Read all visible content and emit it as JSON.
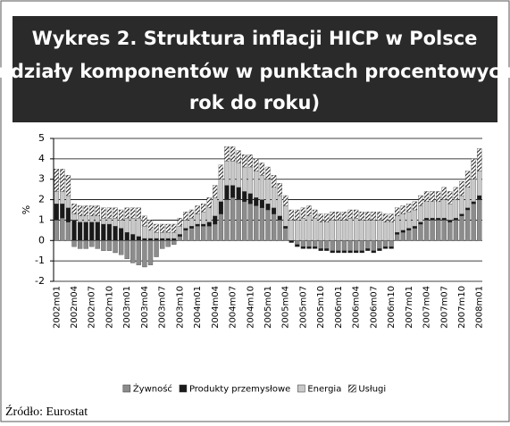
{
  "chart_data": {
    "type": "stacked_bar",
    "title": [
      "Wykres 2. Struktura inflacji HICP w Polsce",
      "(udziały komponentów w punktach procentowych,",
      "rok do roku)"
    ],
    "y_label": "%",
    "source": "Źródło: Eurostat",
    "categories": [
      "2002m01",
      null,
      null,
      "2002m04",
      null,
      null,
      "2002m07",
      null,
      null,
      "2002m10",
      null,
      null,
      "2003m01",
      null,
      null,
      "2003m04",
      null,
      null,
      "2003m07",
      null,
      null,
      "2003m10",
      null,
      null,
      "2004m01",
      null,
      null,
      "2004m04",
      null,
      null,
      "2004m07",
      null,
      null,
      "2004m10",
      null,
      null,
      "2005m01",
      null,
      null,
      "2005m04",
      null,
      null,
      "2005m07",
      null,
      null,
      "2005m10",
      null,
      null,
      "2006m01",
      null,
      null,
      "2006m04",
      null,
      null,
      "2006m07",
      null,
      null,
      "2006m10",
      null,
      null,
      "2007m01",
      null,
      null,
      "2007m04",
      null,
      null,
      "2007m07",
      null,
      null,
      "2007m10",
      null,
      null,
      "2008m01"
    ],
    "series": [
      {
        "name": "Żywność",
        "color": "#8c8c8c",
        "values": [
          1.0,
          1.1,
          0.9,
          -0.3,
          -0.4,
          -0.4,
          -0.3,
          -0.4,
          -0.5,
          -0.5,
          -0.6,
          -0.7,
          -0.9,
          -1.1,
          -1.2,
          -1.3,
          -1.2,
          -0.8,
          -0.4,
          -0.3,
          -0.2,
          0.2,
          0.5,
          0.6,
          0.7,
          0.7,
          0.7,
          0.8,
          1.3,
          2.0,
          2.1,
          2.0,
          1.9,
          1.8,
          1.7,
          1.6,
          1.5,
          1.3,
          1.0,
          0.6,
          0.0,
          -0.2,
          -0.3,
          -0.3,
          -0.3,
          -0.4,
          -0.4,
          -0.5,
          -0.5,
          -0.5,
          -0.5,
          -0.5,
          -0.5,
          -0.4,
          -0.5,
          -0.4,
          -0.3,
          -0.3,
          0.3,
          0.4,
          0.5,
          0.6,
          0.8,
          1.0,
          1.0,
          1.0,
          1.0,
          0.9,
          1.0,
          1.2,
          1.5,
          1.8,
          2.0
        ]
      },
      {
        "name": "Produkty przemysłowe",
        "color": "#1a1a1a",
        "values": [
          0.8,
          0.7,
          0.7,
          1.0,
          0.9,
          0.9,
          0.9,
          0.9,
          0.8,
          0.8,
          0.7,
          0.6,
          0.4,
          0.3,
          0.2,
          0.1,
          0.1,
          0.1,
          0.1,
          0.1,
          0.1,
          0.1,
          0.1,
          0.1,
          0.1,
          0.1,
          0.2,
          0.4,
          0.6,
          0.7,
          0.6,
          0.6,
          0.5,
          0.5,
          0.4,
          0.4,
          0.3,
          0.3,
          0.2,
          0.1,
          -0.1,
          -0.1,
          -0.1,
          -0.1,
          -0.1,
          -0.1,
          -0.1,
          -0.1,
          -0.1,
          -0.1,
          -0.1,
          -0.1,
          -0.1,
          -0.1,
          -0.1,
          -0.1,
          -0.1,
          -0.1,
          0.1,
          0.1,
          0.1,
          0.1,
          0.1,
          0.1,
          0.1,
          0.1,
          0.1,
          0.1,
          0.1,
          0.1,
          0.1,
          0.1,
          0.2
        ]
      },
      {
        "name": "Energia",
        "color": "#c8c8c8",
        "values": [
          0.6,
          0.6,
          0.6,
          0.3,
          0.3,
          0.3,
          0.3,
          0.3,
          0.3,
          0.3,
          0.4,
          0.4,
          0.7,
          0.8,
          0.9,
          0.6,
          0.4,
          0.3,
          0.3,
          0.3,
          0.3,
          0.4,
          0.4,
          0.4,
          0.5,
          0.6,
          0.7,
          0.9,
          1.1,
          1.2,
          1.2,
          1.2,
          1.2,
          1.3,
          1.3,
          1.2,
          1.2,
          1.0,
          1.0,
          1.0,
          1.0,
          1.0,
          1.1,
          1.2,
          1.1,
          0.9,
          0.9,
          1.0,
          1.0,
          1.0,
          1.1,
          1.1,
          1.0,
          1.0,
          1.0,
          1.0,
          0.9,
          0.9,
          0.8,
          0.8,
          0.8,
          0.8,
          0.8,
          0.8,
          0.8,
          0.8,
          0.9,
          0.8,
          0.9,
          0.9,
          1.0,
          1.1,
          1.2
        ]
      },
      {
        "name": "Usługi",
        "color": "#1a1a1a",
        "pattern": "hatch",
        "values": [
          1.1,
          1.1,
          1.0,
          0.5,
          0.5,
          0.5,
          0.5,
          0.5,
          0.5,
          0.5,
          0.5,
          0.5,
          0.5,
          0.5,
          0.5,
          0.5,
          0.5,
          0.4,
          0.4,
          0.4,
          0.4,
          0.4,
          0.4,
          0.4,
          0.4,
          0.4,
          0.5,
          0.6,
          0.7,
          0.7,
          0.7,
          0.6,
          0.6,
          0.6,
          0.6,
          0.6,
          0.6,
          0.6,
          0.6,
          0.5,
          0.5,
          0.5,
          0.5,
          0.5,
          0.4,
          0.4,
          0.4,
          0.4,
          0.4,
          0.4,
          0.4,
          0.4,
          0.4,
          0.4,
          0.4,
          0.4,
          0.4,
          0.4,
          0.4,
          0.4,
          0.4,
          0.4,
          0.5,
          0.5,
          0.5,
          0.5,
          0.6,
          0.6,
          0.6,
          0.7,
          0.8,
          1.0,
          1.1
        ]
      }
    ],
    "ylim": [
      -2,
      5
    ],
    "yticks": [
      -2,
      -1,
      0,
      1,
      2,
      3,
      4,
      5
    ],
    "grid": true
  }
}
